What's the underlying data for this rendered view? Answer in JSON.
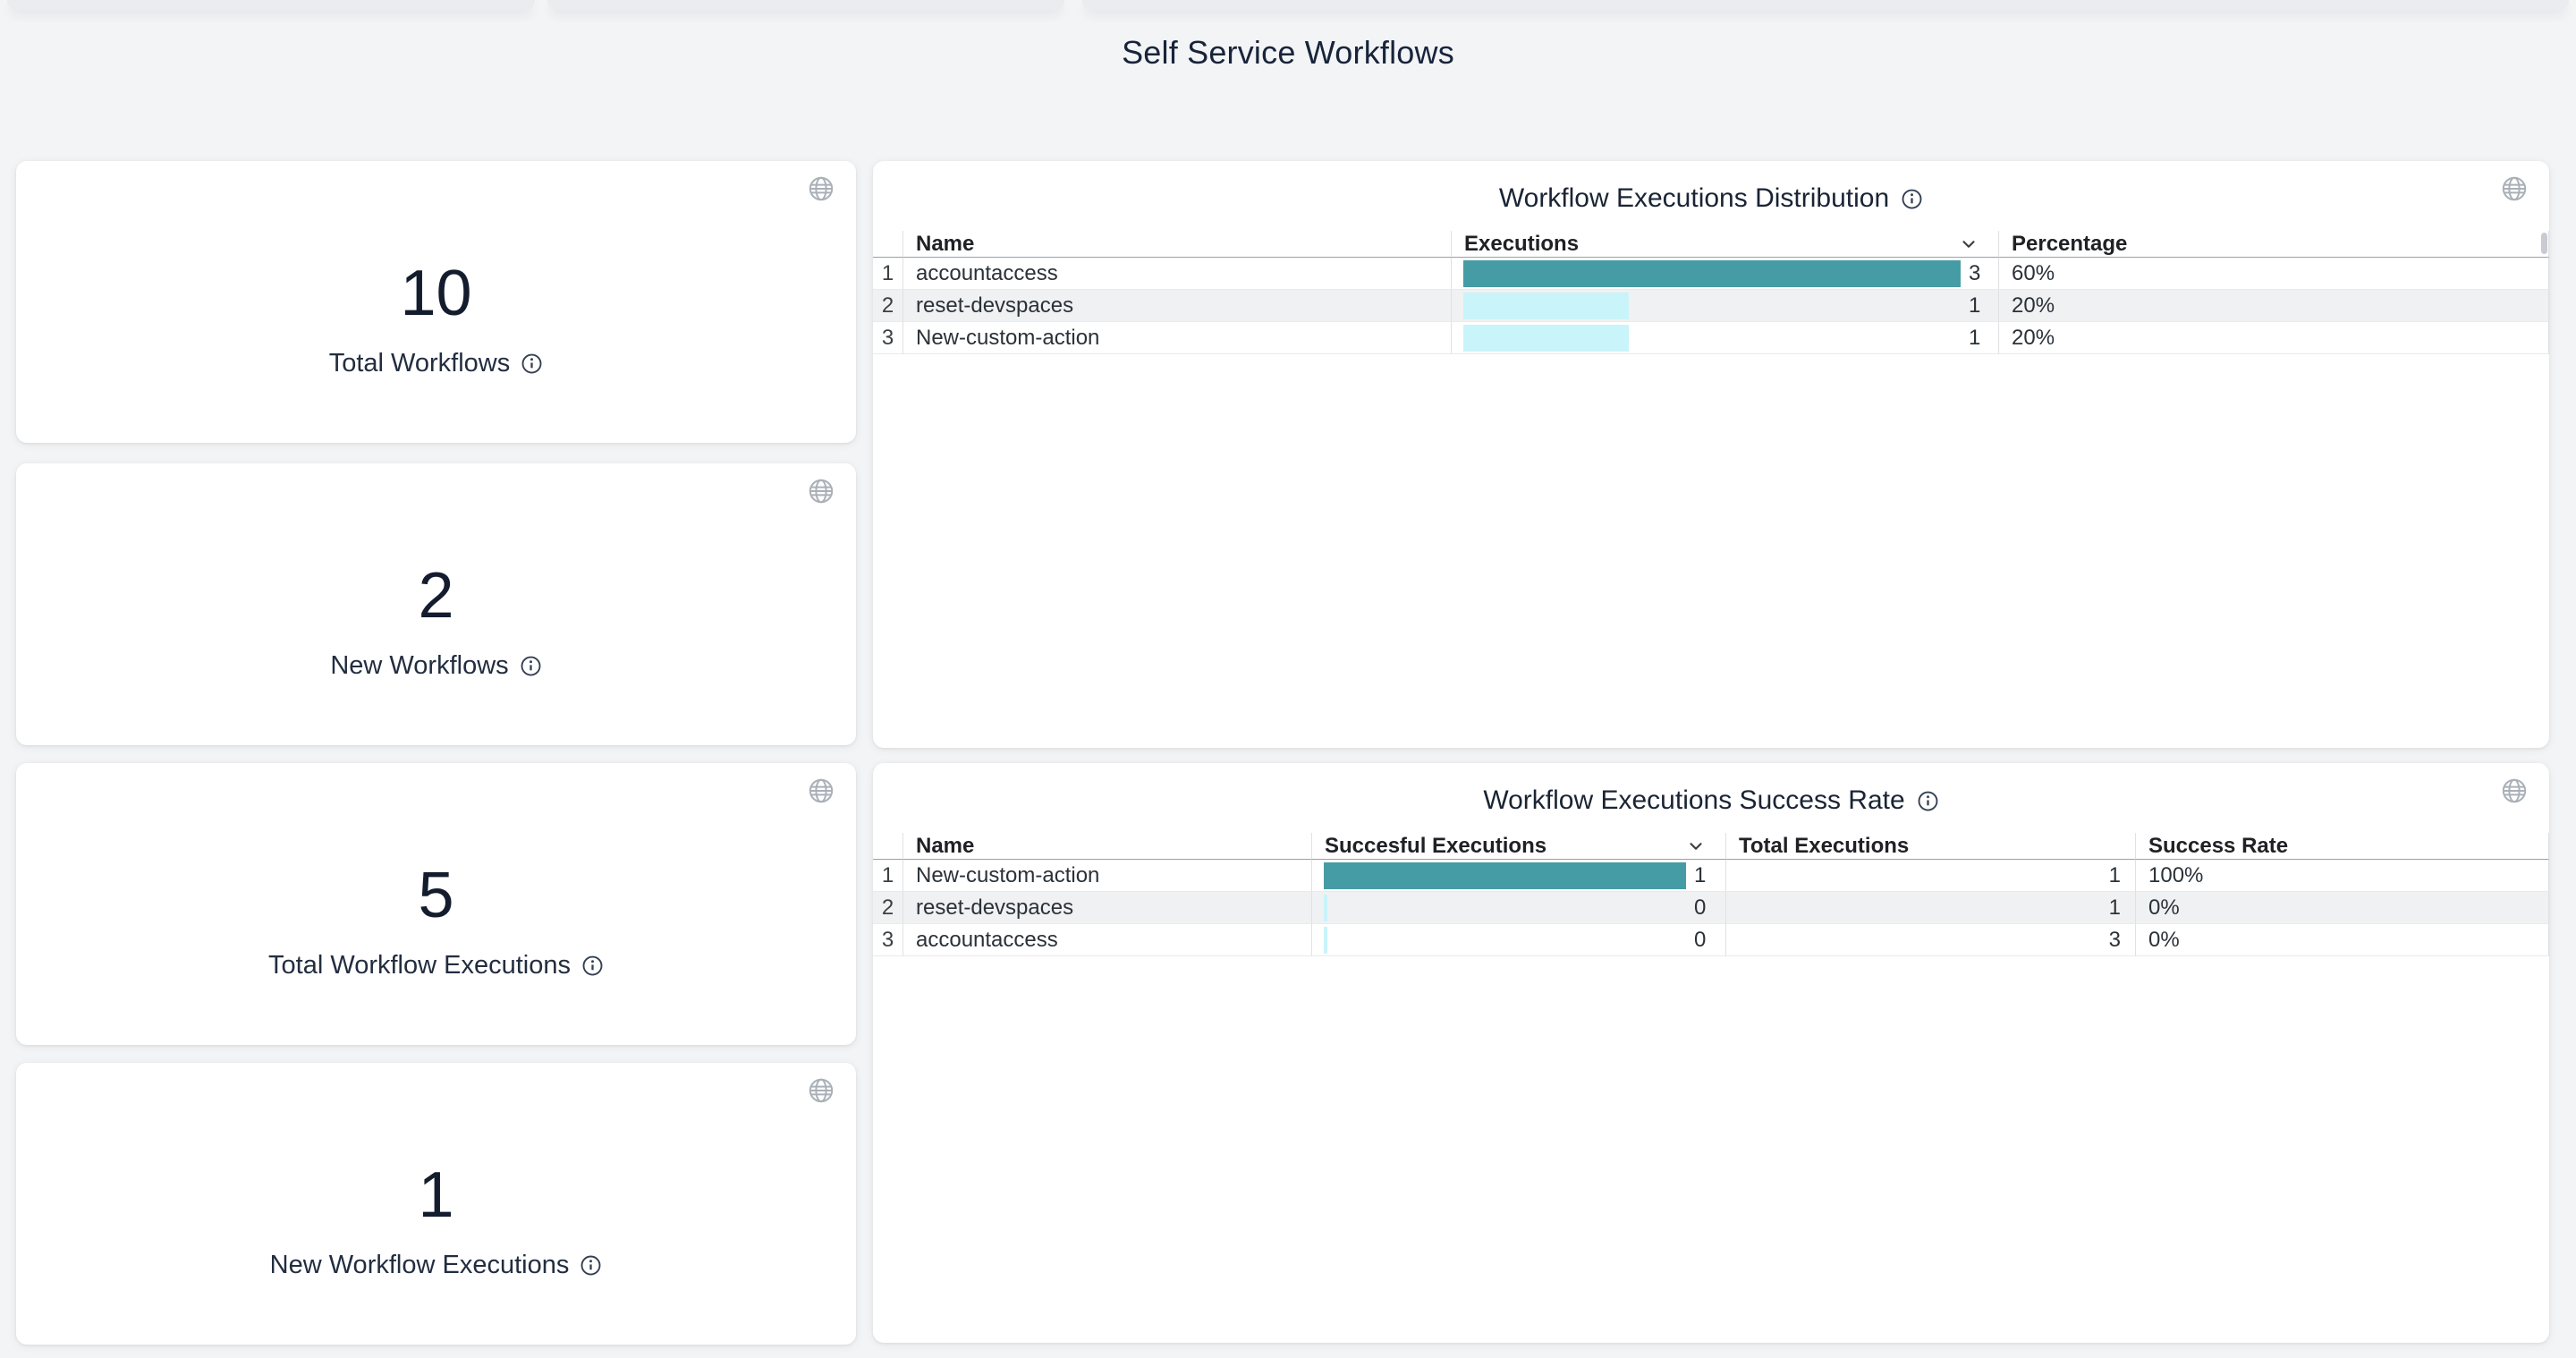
{
  "page": {
    "title": "Self Service Workflows"
  },
  "colors": {
    "background": "#f3f4f6",
    "card": "#ffffff",
    "navy_text": "#18243a",
    "bar_teal": "#469ca4",
    "bar_cyan": "#c9f4fa",
    "row_stripe": "#f0f1f2",
    "icon_gray": "#aab0b8"
  },
  "icons": {
    "globe": "globe-icon",
    "info": "info-icon",
    "sort": "chevron-down-icon"
  },
  "stat_cards": [
    {
      "value": "10",
      "label": "Total Workflows"
    },
    {
      "value": "2",
      "label": "New Workflows"
    },
    {
      "value": "5",
      "label": "Total Workflow Executions"
    },
    {
      "value": "1",
      "label": "New Workflow Executions"
    }
  ],
  "tables": [
    {
      "title": "Workflow Executions Distribution",
      "headers": {
        "name": "Name",
        "executions": "Executions",
        "percentage": "Percentage"
      },
      "sorted_by": "Executions",
      "rows": [
        {
          "index": "1",
          "name": "accountaccess",
          "value_label": "3",
          "bar": {
            "value": 3,
            "max": 3,
            "color": "#469ca4"
          },
          "percentage": "60%"
        },
        {
          "index": "2",
          "name": "reset-devspaces",
          "value_label": "1",
          "bar": {
            "value": 1,
            "max": 3,
            "color": "#c9f4fa"
          },
          "percentage": "20%"
        },
        {
          "index": "3",
          "name": "New-custom-action",
          "value_label": "1",
          "bar": {
            "value": 1,
            "max": 3,
            "color": "#c9f4fa"
          },
          "percentage": "20%"
        }
      ]
    },
    {
      "title": "Workflow Executions Success Rate",
      "headers": {
        "name": "Name",
        "successful": "Succesful Executions",
        "total": "Total Executions",
        "rate": "Success Rate"
      },
      "sorted_by": "Succesful Executions",
      "rows": [
        {
          "index": "1",
          "name": "New-custom-action",
          "value_label": "1",
          "bar": {
            "value": 1,
            "max": 1,
            "color": "#469ca4"
          },
          "total": "1",
          "rate": "100%"
        },
        {
          "index": "2",
          "name": "reset-devspaces",
          "value_label": "0",
          "bar": {
            "value": 0,
            "max": 1,
            "color": "#c9f4fa"
          },
          "total": "1",
          "rate": "0%"
        },
        {
          "index": "3",
          "name": "accountaccess",
          "value_label": "0",
          "bar": {
            "value": 0,
            "max": 1,
            "color": "#c9f4fa"
          },
          "total": "3",
          "rate": "0%"
        }
      ]
    }
  ]
}
